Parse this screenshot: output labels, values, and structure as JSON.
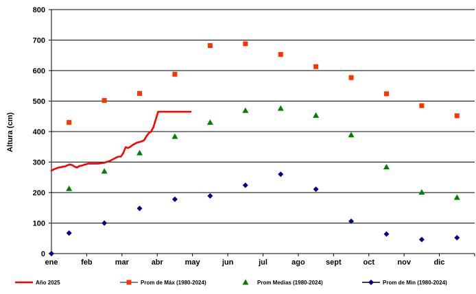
{
  "chart_data": {
    "type": "line",
    "ylabel": "Altura (cm)",
    "ylim": [
      0,
      800
    ],
    "yticks": [
      0,
      100,
      200,
      300,
      400,
      500,
      600,
      700,
      800
    ],
    "months": [
      "ene",
      "feb",
      "mar",
      "abr",
      "may",
      "jun",
      "jul",
      "ago",
      "sept",
      "oct",
      "nov",
      "dic"
    ],
    "grid": "horizontal",
    "legend_position": "bottom",
    "series": [
      {
        "name": "Año 2025",
        "kind": "line",
        "color": "#ff0000",
        "x": [
          0,
          2,
          4,
          6,
          8,
          10,
          12,
          14,
          16,
          18,
          20,
          22,
          24,
          26,
          28,
          30,
          32,
          34,
          36,
          38,
          40,
          42,
          44,
          46,
          48,
          50,
          52,
          54,
          56,
          58,
          60,
          62,
          64,
          66,
          68,
          70,
          72,
          74,
          76,
          78,
          80,
          82,
          84,
          86,
          88,
          90,
          92,
          94,
          96,
          98,
          100,
          102,
          104,
          106,
          108,
          110,
          112,
          114,
          116,
          118,
          120
        ],
        "values": [
          272,
          276,
          279,
          282,
          283,
          285,
          286,
          290,
          292,
          290,
          285,
          282,
          287,
          288,
          291,
          293,
          295,
          295,
          295,
          295,
          295,
          296,
          297,
          298,
          301,
          303,
          307,
          311,
          315,
          318,
          318,
          330,
          349,
          346,
          350,
          356,
          360,
          364,
          366,
          368,
          372,
          385,
          395,
          400,
          415,
          440,
          465,
          465,
          465,
          465,
          465,
          465,
          465,
          465,
          465,
          465,
          465,
          465,
          465,
          465,
          465
        ]
      },
      {
        "name": "Prom de Máx (1980-2024)",
        "kind": "marker",
        "marker": "square",
        "color": "#ff3300",
        "x": [
          0.5,
          1.5,
          2.5,
          3.5,
          4.5,
          5.5,
          6.5,
          7.5,
          8.5,
          9.5,
          10.5,
          11.5
        ],
        "values": [
          430,
          502,
          525,
          588,
          682,
          688,
          653,
          613,
          577,
          524,
          485,
          452
        ]
      },
      {
        "name": "Prom Medias (1980-2024)",
        "kind": "marker",
        "marker": "triangle",
        "color": "#008000",
        "x": [
          0.5,
          1.5,
          2.5,
          3.5,
          4.5,
          5.5,
          6.5,
          7.5,
          8.5,
          9.5,
          10.5,
          11.5
        ],
        "values": [
          213,
          270,
          330,
          384,
          430,
          469,
          476,
          453,
          389,
          284,
          201,
          184
        ]
      },
      {
        "name": "Prom de Min  (1980-2024)",
        "kind": "marker",
        "marker": "diamond",
        "color": "#00008b",
        "x": [
          0,
          0.5,
          1.5,
          2.5,
          3.5,
          4.5,
          5.5,
          6.5,
          7.5,
          8.5,
          9.5,
          10.5,
          11.5
        ],
        "values": [
          0,
          67,
          100,
          148,
          178,
          189,
          224,
          260,
          211,
          106,
          64,
          46,
          52
        ]
      }
    ]
  }
}
